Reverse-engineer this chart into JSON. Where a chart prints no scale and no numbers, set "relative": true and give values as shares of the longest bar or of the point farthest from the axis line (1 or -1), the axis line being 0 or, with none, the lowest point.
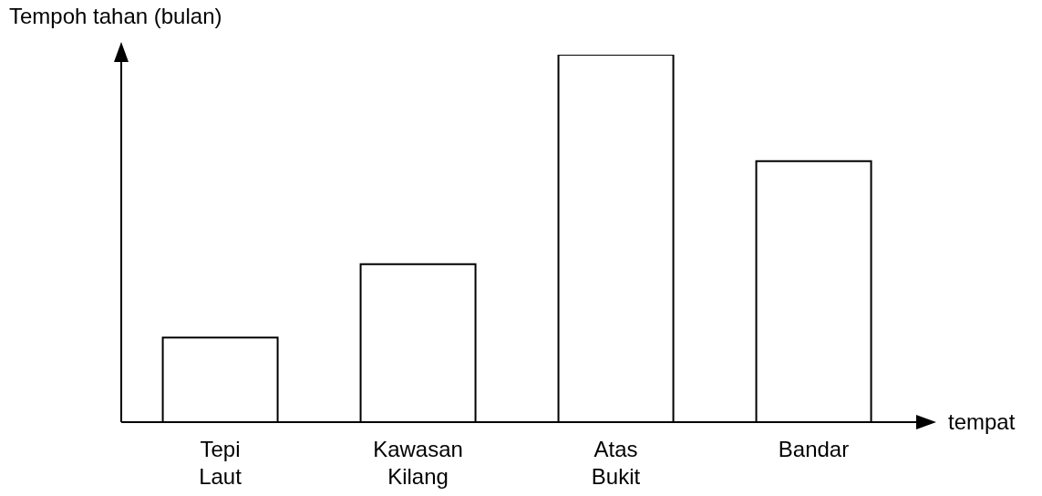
{
  "chart_data": {
    "type": "bar",
    "relative": true,
    "xlabel": "tempat",
    "ylabel": "Tempoh tahan (bulan)",
    "categories": [
      "Tepi Laut",
      "Kawasan Kilang",
      "Atas Bukit",
      "Bandar"
    ],
    "values": [
      0.23,
      0.43,
      1,
      0.71
    ],
    "color": "#ffffff",
    "grid": false,
    "legend": false
  }
}
